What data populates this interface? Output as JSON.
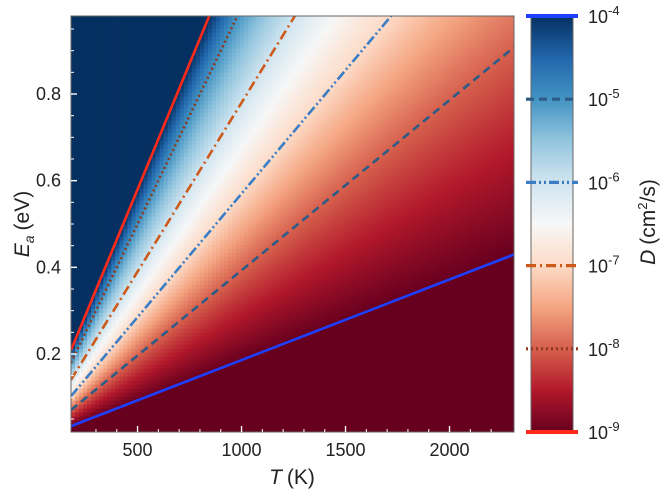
{
  "chart_data": {
    "type": "heatmap",
    "description_note": "",
    "xlabel": {
      "symbol": "T",
      "unit": "(K)"
    },
    "ylabel": {
      "symbol": "E",
      "subscript": "a",
      "unit": "(eV)"
    },
    "xlim": [
      180,
      2310
    ],
    "ylim": [
      0.02,
      0.98
    ],
    "x_ticks": [
      500,
      1000,
      1500,
      2000
    ],
    "x_tick_labels": [
      "500",
      "1000",
      "1500",
      "2000"
    ],
    "y_ticks": [
      0.2,
      0.4,
      0.6,
      0.8
    ],
    "y_tick_labels": [
      "0.2",
      "0.4",
      "0.6",
      "0.8"
    ],
    "colorbar": {
      "label": {
        "symbol": "D",
        "unit": "(cm",
        "sup": "2",
        "tail": "/s)"
      },
      "scale": "log",
      "log_range": [
        -9,
        -4
      ],
      "ticks": [
        {
          "base": "10",
          "exp": "-4",
          "log": -4
        },
        {
          "base": "10",
          "exp": "-5",
          "log": -5
        },
        {
          "base": "10",
          "exp": "-6",
          "log": -6
        },
        {
          "base": "10",
          "exp": "-7",
          "log": -7
        },
        {
          "base": "10",
          "exp": "-8",
          "log": -8
        },
        {
          "base": "10",
          "exp": "-9",
          "log": -9
        }
      ],
      "colors": [
        "#67001f",
        "#b2182b",
        "#d6604d",
        "#f4a582",
        "#fddbc7",
        "#f7f7f7",
        "#d1e5f0",
        "#92c5de",
        "#4393c3",
        "#2166ac",
        "#053061"
      ]
    },
    "iso_lines": [
      {
        "log_D": -4,
        "slope_eV_per_K": 0.000186,
        "color": "#1f3fff",
        "style": "solid"
      },
      {
        "log_D": -5,
        "slope_eV_per_K": 0.000393,
        "color": "#2d5b88",
        "style": "dashed"
      },
      {
        "log_D": -6,
        "slope_eV_per_K": 0.00057,
        "color": "#3b7dc4",
        "style": "dashdotdot"
      },
      {
        "log_D": -7,
        "slope_eV_per_K": 0.00078,
        "color": "#cc5a1a",
        "style": "dashdot"
      },
      {
        "log_D": -8,
        "slope_eV_per_K": 0.001,
        "color": "#8b3a1e",
        "style": "dotted"
      },
      {
        "log_D": -9,
        "slope_eV_per_K": 0.00116,
        "color": "#ff2a1a",
        "style": "solid"
      }
    ]
  }
}
